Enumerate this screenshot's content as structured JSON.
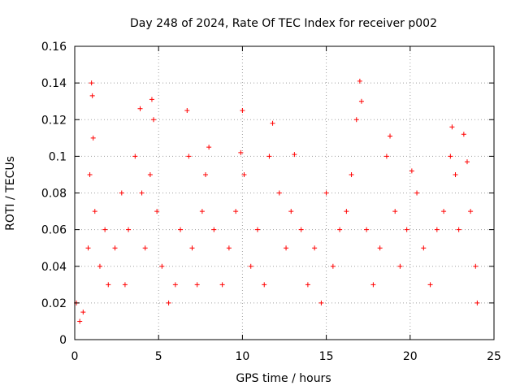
{
  "chart_data": {
    "type": "scatter",
    "title": "Day 248 of 2024, Rate Of TEC Index for receiver p002",
    "xlabel": "GPS time / hours",
    "ylabel": "ROTI / TECUs",
    "xlim": [
      0,
      25
    ],
    "ylim": [
      0,
      0.16
    ],
    "xticks": [
      0,
      5,
      10,
      15,
      20,
      25
    ],
    "xtick_labels": [
      "0",
      "5",
      "10",
      "15",
      "20",
      "25"
    ],
    "yticks": [
      0,
      0.02,
      0.04,
      0.06,
      0.08,
      0.1,
      0.12,
      0.14,
      0.16
    ],
    "ytick_labels": [
      "0",
      "0.02",
      "0.04",
      "0.06",
      "0.08",
      "0.1",
      "0.12",
      "0.14",
      "0.16"
    ],
    "grid": true,
    "marker": "+",
    "color": "#ff0000",
    "series": [
      {
        "name": "ROTI",
        "x": [
          0.1,
          0.3,
          0.5,
          0.8,
          0.9,
          1.0,
          1.05,
          1.1,
          1.2,
          1.5,
          1.8,
          2.0,
          2.4,
          2.8,
          3.0,
          3.2,
          3.6,
          3.9,
          4.0,
          4.2,
          4.5,
          4.6,
          4.7,
          4.9,
          5.2,
          5.6,
          6.0,
          6.3,
          6.7,
          6.8,
          7.0,
          7.3,
          7.6,
          7.8,
          8.0,
          8.3,
          8.8,
          9.2,
          9.6,
          9.9,
          10.0,
          10.1,
          10.5,
          10.9,
          11.3,
          11.6,
          11.8,
          12.2,
          12.6,
          12.9,
          13.1,
          13.5,
          13.9,
          14.3,
          14.7,
          15.0,
          15.4,
          15.8,
          16.2,
          16.5,
          16.8,
          17.0,
          17.1,
          17.4,
          17.8,
          18.2,
          18.6,
          18.8,
          19.1,
          19.4,
          19.8,
          20.1,
          20.4,
          20.8,
          21.2,
          21.6,
          22.0,
          22.4,
          22.5,
          22.7,
          22.9,
          23.2,
          23.4,
          23.6,
          23.9,
          24.0
        ],
        "y": [
          0.02,
          0.01,
          0.015,
          0.05,
          0.09,
          0.14,
          0.133,
          0.11,
          0.07,
          0.04,
          0.06,
          0.03,
          0.05,
          0.08,
          0.03,
          0.06,
          0.1,
          0.126,
          0.08,
          0.05,
          0.09,
          0.131,
          0.12,
          0.07,
          0.04,
          0.02,
          0.03,
          0.06,
          0.125,
          0.1,
          0.05,
          0.03,
          0.07,
          0.09,
          0.105,
          0.06,
          0.03,
          0.05,
          0.07,
          0.102,
          0.125,
          0.09,
          0.04,
          0.06,
          0.03,
          0.1,
          0.118,
          0.08,
          0.05,
          0.07,
          0.101,
          0.06,
          0.03,
          0.05,
          0.02,
          0.08,
          0.04,
          0.06,
          0.07,
          0.09,
          0.12,
          0.141,
          0.13,
          0.06,
          0.03,
          0.05,
          0.1,
          0.111,
          0.07,
          0.04,
          0.06,
          0.092,
          0.08,
          0.05,
          0.03,
          0.06,
          0.07,
          0.1,
          0.116,
          0.09,
          0.06,
          0.112,
          0.097,
          0.07,
          0.04,
          0.02
        ]
      }
    ]
  }
}
